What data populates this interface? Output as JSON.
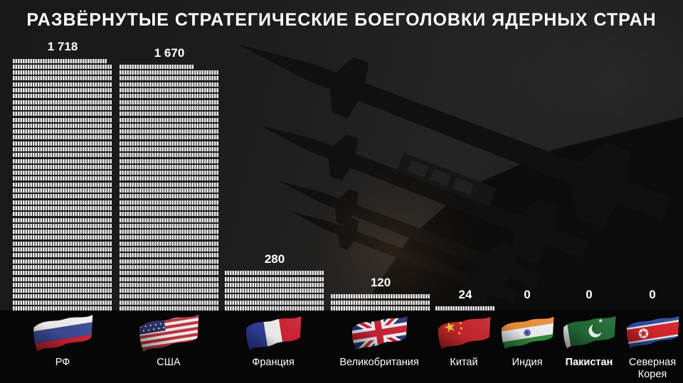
{
  "title": "РАЗВЁРНУТЫЕ СТРАТЕГИЧЕСКИЕ БОЕГОЛОВКИ ЯДЕРНЫХ СТРАН",
  "chart_data": {
    "type": "bar",
    "subtype": "pictogram-isotype",
    "title": "РАЗВЁРНУТЫЕ СТРАТЕГИЧЕСКИЕ БОЕГОЛОВКИ ЯДЕРНЫХ СТРАН",
    "categories": [
      "РФ",
      "США",
      "Франция",
      "Великобритания",
      "Китай",
      "Индия",
      "Пакистан",
      "Северная Корея"
    ],
    "values": [
      1718,
      1670,
      280,
      120,
      24,
      0,
      0,
      0
    ],
    "value_labels": [
      "1 718",
      "1 670",
      "280",
      "120",
      "24",
      "0",
      "0",
      "0"
    ],
    "unit_per_icon": 1,
    "icons_per_row": 40,
    "xlabel": "",
    "ylabel": "",
    "ylim": [
      0,
      1718
    ],
    "grid": false,
    "legend_position": "none"
  },
  "countries": [
    {
      "name": "РФ",
      "flag": "russia",
      "bold": false,
      "two_line": false
    },
    {
      "name": "США",
      "flag": "usa",
      "bold": false,
      "two_line": false
    },
    {
      "name": "Франция",
      "flag": "france",
      "bold": false,
      "two_line": false
    },
    {
      "name": "Великобритания",
      "flag": "uk",
      "bold": false,
      "two_line": false
    },
    {
      "name": "Китай",
      "flag": "china",
      "bold": false,
      "two_line": false
    },
    {
      "name": "Индия",
      "flag": "india",
      "bold": false,
      "two_line": false
    },
    {
      "name": "Пакистан",
      "flag": "pakistan",
      "bold": true,
      "two_line": false
    },
    {
      "name": "Северная Корея",
      "flag": "north-korea",
      "bold": false,
      "two_line": true
    }
  ],
  "colors": {
    "background": "#1f1f1f",
    "bottom_band": "#060606",
    "icon": "#ededed",
    "text": "#ffffff",
    "silhouette": "#101010",
    "flags": {
      "russia": {
        "white": "#f2f2f2",
        "blue": "#3b4a96",
        "red": "#d02033"
      },
      "usa": {
        "white": "#f2f2f2",
        "red": "#c4303c",
        "navy": "#2d3566"
      },
      "france": {
        "blue": "#31409f",
        "white": "#f2f2f2",
        "red": "#d02033"
      },
      "uk": {
        "navy": "#2a3173",
        "white": "#f2f2f2",
        "red": "#cc2238"
      },
      "china": {
        "red": "#c7272d",
        "yellow": "#f5c83c"
      },
      "india": {
        "saffron": "#ef8f3c",
        "white": "#f2f2f2",
        "green": "#2f8f3a",
        "navy": "#2b3a8c"
      },
      "pakistan": {
        "green": "#226b35",
        "white": "#f2f2f2"
      },
      "north-korea": {
        "blue": "#2f4da0",
        "white": "#f2f2f2",
        "red": "#d7232b"
      }
    }
  }
}
